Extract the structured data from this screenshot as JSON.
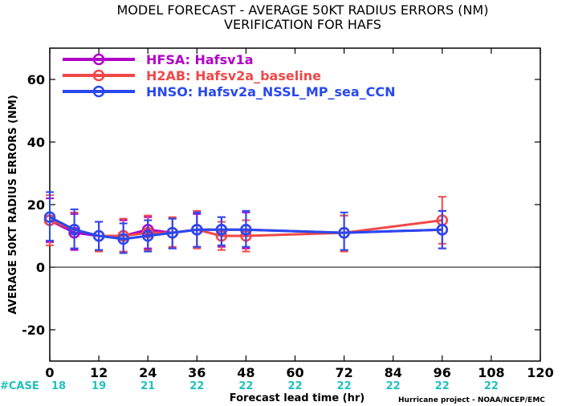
{
  "chart_data": {
    "type": "line",
    "title": "MODEL FORECAST - AVERAGE 50KT RADIUS ERRORS (NM)",
    "subtitle": "VERIFICATION FOR HAFS",
    "xlabel": "Forecast lead time (hr)",
    "ylabel": "AVERAGE 50KT RADIUS ERRORS (NM)",
    "xlim": [
      0,
      120
    ],
    "ylim": [
      -30,
      70
    ],
    "xticks": [
      0,
      12,
      24,
      36,
      48,
      60,
      72,
      84,
      96,
      108,
      120
    ],
    "yticks": [
      -20,
      0,
      20,
      40,
      60
    ],
    "zero_line": true,
    "legend_position": "top-left",
    "series": [
      {
        "name": "HFSA: Hafsv1a",
        "color": "#b000c8",
        "x": [
          0,
          6,
          12,
          18,
          24,
          30,
          36,
          42,
          48,
          72,
          96
        ],
        "y": [
          15,
          11,
          10,
          10,
          12,
          11,
          12,
          12,
          12,
          11,
          12
        ],
        "err_low": [
          8,
          5.5,
          5.5,
          5,
          6,
          6,
          6.5,
          6.5,
          6,
          5.5,
          6
        ],
        "err_high": [
          22,
          17,
          14.5,
          15,
          16,
          15.5,
          17,
          16,
          17.5,
          16.5,
          18
        ]
      },
      {
        "name": "H2AB: Hafsv2a_baseline",
        "color": "#f04848",
        "x": [
          0,
          6,
          12,
          18,
          24,
          30,
          36,
          42,
          48,
          72,
          96
        ],
        "y": [
          15,
          12,
          10,
          10,
          11,
          11,
          12,
          10,
          10,
          11,
          15
        ],
        "err_low": [
          7,
          6,
          5,
          5,
          5.5,
          6.5,
          6,
          5.5,
          5,
          5,
          7.5
        ],
        "err_high": [
          23,
          17.5,
          14.5,
          15.5,
          16.5,
          16,
          18,
          14.5,
          15,
          16.5,
          22.5
        ]
      },
      {
        "name": "HNSO: Hafsv2a_NSSL_MP_sea_CCN",
        "color": "#2848f0",
        "x": [
          0,
          6,
          12,
          18,
          24,
          30,
          36,
          42,
          48,
          72,
          96
        ],
        "y": [
          16,
          12,
          10,
          9,
          10,
          11,
          12,
          12,
          12,
          11,
          12
        ],
        "err_low": [
          8.5,
          6,
          5.5,
          4.5,
          5,
          6,
          6.5,
          7,
          6.5,
          5.5,
          6
        ],
        "err_high": [
          24,
          18.5,
          14.5,
          14,
          15,
          15.5,
          17.5,
          16,
          18,
          17.5,
          18
        ]
      }
    ],
    "case_label": "#CASE",
    "case_counts": [
      {
        "x": 0,
        "label": "18"
      },
      {
        "x": 12,
        "label": "19"
      },
      {
        "x": 24,
        "label": "21"
      },
      {
        "x": 36,
        "label": "22"
      },
      {
        "x": 48,
        "label": "22"
      },
      {
        "x": 60,
        "label": "22"
      },
      {
        "x": 72,
        "label": "22"
      },
      {
        "x": 84,
        "label": "22"
      },
      {
        "x": 96,
        "label": "22"
      },
      {
        "x": 108,
        "label": "22"
      }
    ],
    "credit": "Hurricane project - NOAA/NCEP/EMC"
  }
}
